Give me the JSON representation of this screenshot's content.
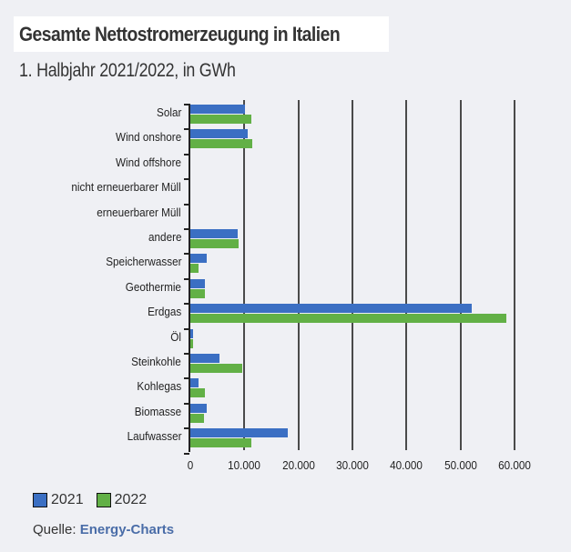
{
  "header": {
    "title": "Gesamte Nettostromerzeugung in Italien",
    "subtitle": "1. Halbjahr 2021/2022, in GWh"
  },
  "legend": [
    {
      "label": "2021",
      "color": "#3b6fc3"
    },
    {
      "label": "2022",
      "color": "#62b046"
    }
  ],
  "source": {
    "prefix": "Quelle:",
    "link": "Energy-Charts"
  },
  "axis": {
    "ticks": [
      "0",
      "10.000",
      "20.000",
      "30.000",
      "40.000",
      "50.000",
      "60.000"
    ]
  },
  "chart_data": {
    "type": "bar",
    "orientation": "horizontal",
    "title": "Gesamte Nettostromerzeugung in Italien",
    "subtitle": "1. Halbjahr 2021/2022, in GWh",
    "xlabel": "",
    "ylabel": "",
    "xlim": [
      0,
      60000
    ],
    "grid": true,
    "legend_position": "bottom-left",
    "categories": [
      "Solar",
      "Wind onshore",
      "Wind offshore",
      "nicht erneuerbarer Müll",
      "erneuerbarer Müll",
      "andere",
      "Speicherwasser",
      "Geothermie",
      "Erdgas",
      "Öl",
      "Steinkohle",
      "Kohlegas",
      "Biomasse",
      "Laufwasser"
    ],
    "series": [
      {
        "name": "2021",
        "color": "#3b6fc3",
        "values": [
          10100,
          10700,
          0,
          0,
          0,
          8800,
          3000,
          2700,
          52100,
          500,
          5400,
          1600,
          3000,
          18000
        ]
      },
      {
        "name": "2022",
        "color": "#62b046",
        "values": [
          11300,
          11400,
          0,
          0,
          0,
          8900,
          1500,
          2700,
          58500,
          500,
          9600,
          2700,
          2500,
          11300
        ]
      }
    ]
  }
}
